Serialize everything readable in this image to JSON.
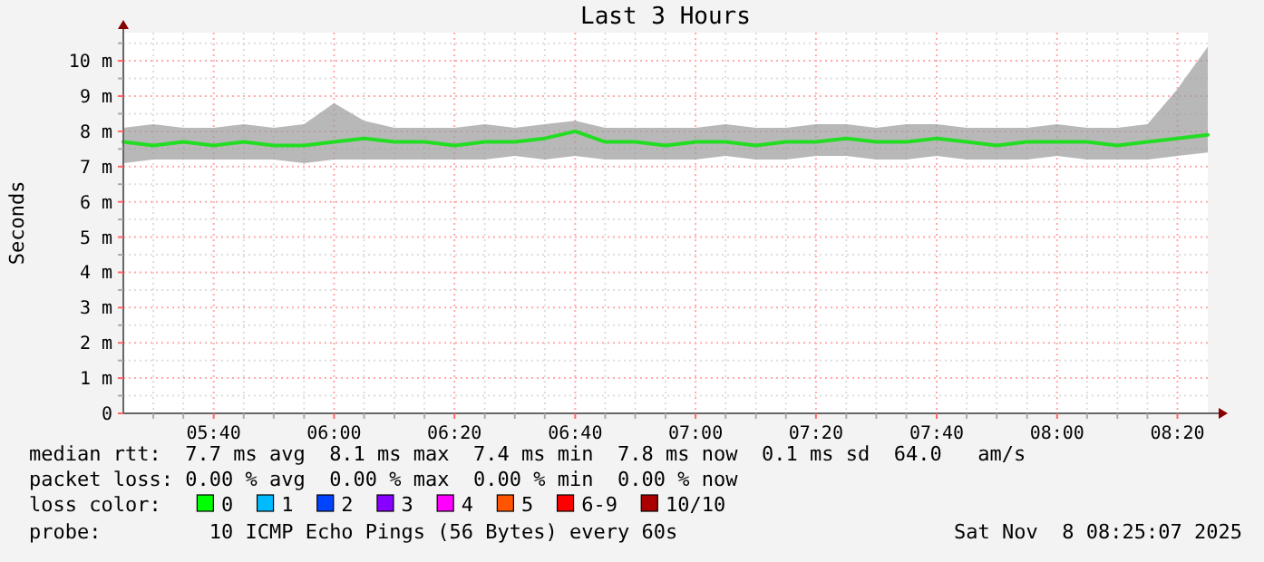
{
  "chart_data": {
    "type": "line",
    "title": "Last 3 Hours",
    "ylabel": "Seconds",
    "x": [
      5.417,
      5.5,
      5.583,
      5.667,
      5.75,
      5.833,
      5.917,
      6,
      6.083,
      6.167,
      6.25,
      6.333,
      6.417,
      6.5,
      6.583,
      6.667,
      6.75,
      6.833,
      6.917,
      7,
      7.083,
      7.167,
      7.25,
      7.333,
      7.417,
      7.5,
      7.583,
      7.667,
      7.75,
      7.833,
      7.917,
      8,
      8.083,
      8.167,
      8.25,
      8.333,
      8.417
    ],
    "series": [
      {
        "color": "#22dd22",
        "values": [
          7.7,
          7.6,
          7.7,
          7.6,
          7.7,
          7.6,
          7.6,
          7.7,
          7.8,
          7.7,
          7.7,
          7.6,
          7.7,
          7.7,
          7.8,
          8.0,
          7.7,
          7.7,
          7.6,
          7.7,
          7.7,
          7.6,
          7.7,
          7.7,
          7.8,
          7.7,
          7.7,
          7.8,
          7.7,
          7.6,
          7.7,
          7.7,
          7.7,
          7.6,
          7.7,
          7.8,
          7.9
        ],
        "lower": [
          7.1,
          7.2,
          7.2,
          7.2,
          7.2,
          7.2,
          7.1,
          7.2,
          7.2,
          7.2,
          7.2,
          7.2,
          7.2,
          7.3,
          7.2,
          7.3,
          7.2,
          7.2,
          7.2,
          7.2,
          7.3,
          7.2,
          7.2,
          7.3,
          7.3,
          7.2,
          7.2,
          7.3,
          7.2,
          7.2,
          7.2,
          7.3,
          7.2,
          7.2,
          7.2,
          7.3,
          7.4
        ],
        "upper": [
          8.1,
          8.2,
          8.1,
          8.1,
          8.2,
          8.1,
          8.2,
          8.8,
          8.3,
          8.1,
          8.1,
          8.1,
          8.2,
          8.1,
          8.2,
          8.3,
          8.1,
          8.1,
          8.1,
          8.1,
          8.2,
          8.1,
          8.1,
          8.2,
          8.2,
          8.1,
          8.2,
          8.2,
          8.1,
          8.1,
          8.1,
          8.2,
          8.1,
          8.1,
          8.2,
          9.2,
          10.4
        ]
      }
    ],
    "xlim": [
      5.417,
      8.417
    ],
    "xticks": [
      {
        "value": 5.5,
        "label": null
      },
      {
        "value": 5.583,
        "label": null
      },
      {
        "value": 5.667,
        "label": "05:40"
      },
      {
        "value": 5.75,
        "label": null
      },
      {
        "value": 5.833,
        "label": null
      },
      {
        "value": 5.917,
        "label": null
      },
      {
        "value": 6,
        "label": "06:00"
      },
      {
        "value": 6.083,
        "label": null
      },
      {
        "value": 6.167,
        "label": null
      },
      {
        "value": 6.25,
        "label": null
      },
      {
        "value": 6.333,
        "label": "06:20"
      },
      {
        "value": 6.417,
        "label": null
      },
      {
        "value": 6.5,
        "label": null
      },
      {
        "value": 6.583,
        "label": null
      },
      {
        "value": 6.667,
        "label": "06:40"
      },
      {
        "value": 6.75,
        "label": null
      },
      {
        "value": 6.833,
        "label": null
      },
      {
        "value": 6.917,
        "label": null
      },
      {
        "value": 7,
        "label": "07:00"
      },
      {
        "value": 7.083,
        "label": null
      },
      {
        "value": 7.167,
        "label": null
      },
      {
        "value": 7.25,
        "label": null
      },
      {
        "value": 7.333,
        "label": "07:20"
      },
      {
        "value": 7.417,
        "label": null
      },
      {
        "value": 7.5,
        "label": null
      },
      {
        "value": 7.583,
        "label": null
      },
      {
        "value": 7.667,
        "label": "07:40"
      },
      {
        "value": 7.75,
        "label": null
      },
      {
        "value": 7.833,
        "label": null
      },
      {
        "value": 7.917,
        "label": null
      },
      {
        "value": 8,
        "label": "08:00"
      },
      {
        "value": 8.083,
        "label": null
      },
      {
        "value": 8.167,
        "label": null
      },
      {
        "value": 8.25,
        "label": null
      },
      {
        "value": 8.333,
        "label": "08:20"
      }
    ],
    "ylim": [
      0,
      10.8
    ],
    "yticks": [
      0,
      {
        "value": 0.5,
        "label": null
      },
      {
        "value": 1,
        "label": "1 m"
      },
      {
        "value": 1.5,
        "label": null
      },
      {
        "value": 2,
        "label": "2 m"
      },
      {
        "value": 2.5,
        "label": null
      },
      {
        "value": 3,
        "label": "3 m"
      },
      {
        "value": 3.5,
        "label": null
      },
      {
        "value": 4,
        "label": "4 m"
      },
      {
        "value": 4.5,
        "label": null
      },
      {
        "value": 5,
        "label": "5 m"
      },
      {
        "value": 5.5,
        "label": null
      },
      {
        "value": 6,
        "label": "6 m"
      },
      {
        "value": 6.5,
        "label": null
      },
      {
        "value": 7,
        "label": "7 m"
      },
      {
        "value": 7.5,
        "label": null
      },
      {
        "value": 8,
        "label": "8 m"
      },
      {
        "value": 8.5,
        "label": null
      },
      {
        "value": 9,
        "label": "9 m"
      },
      {
        "value": 9.5,
        "label": null
      },
      {
        "value": 10,
        "label": "10 m"
      },
      {
        "value": 10.5,
        "label": null
      }
    ],
    "grid": true,
    "marker": "none",
    "line_style": "solid",
    "annotations": [
      "median rtt:  7.7 ms avg  8.1 ms max  7.4 ms min  7.8 ms now  0.1 ms sd  64.0   am/s",
      "packet loss: 0.00 % avg  0.00 % max  0.00 % min  0.00 % now",
      "loss color:     0    1    2    3    4    5    6-9    10/10",
      "probe:         10 ICMP Echo Pings (56 Bytes) every 60s",
      "Sat Nov  8 08:25:07 2025"
    ]
  }
}
